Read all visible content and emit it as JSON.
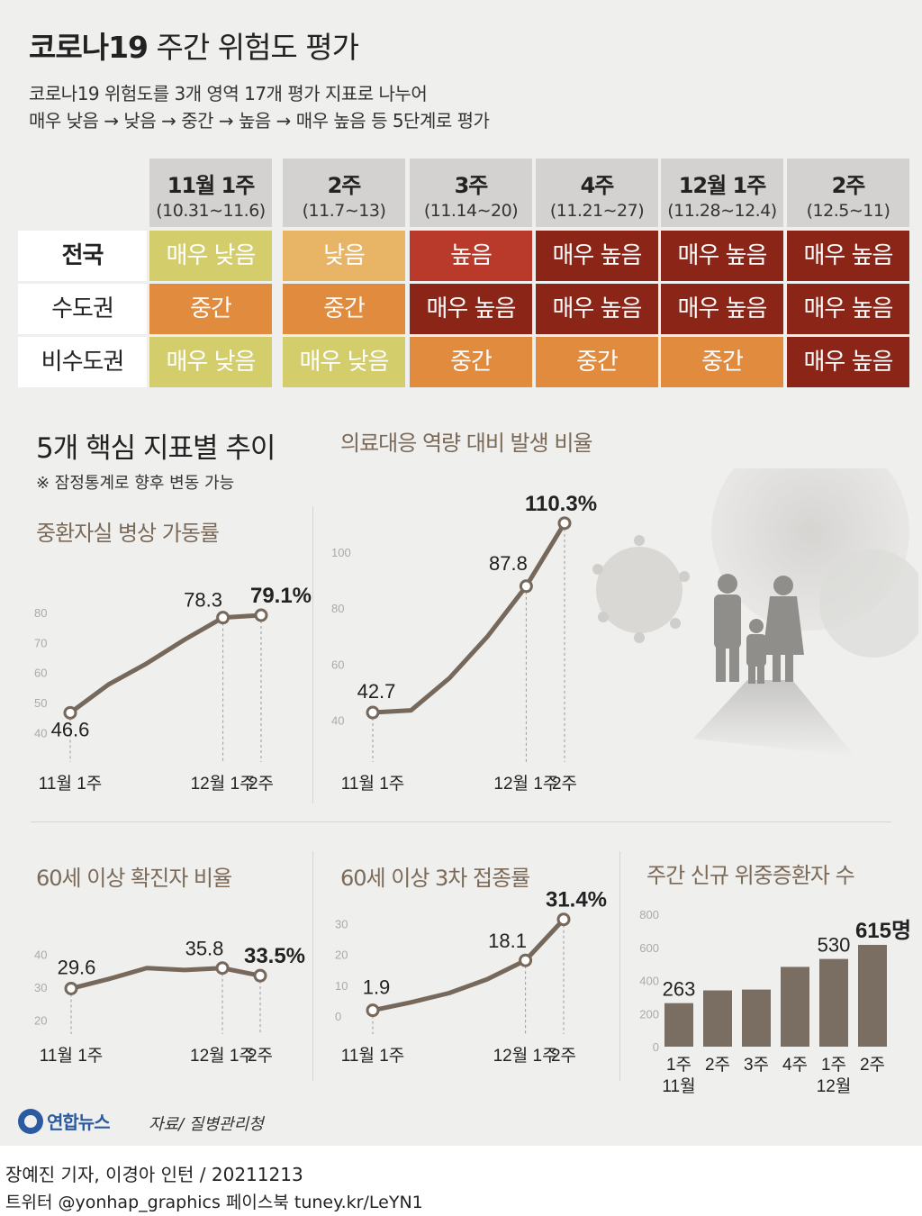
{
  "header": {
    "title_bold": "코로나19",
    "title_rest": " 주간 위험도 평가",
    "subtitle_1": "코로나19 위험도를 3개 영역 17개 평가 지표로 나누어",
    "subtitle_2": "매우 낮음 → 낮음 → 중간 → 높음 → 매우 높음 등 5단계로 평가"
  },
  "risk_table": {
    "columns": [
      {
        "week": "11월 1주",
        "dates": "(10.31∼11.6)"
      },
      {
        "week": "2주",
        "dates": "(11.7∼13)"
      },
      {
        "week": "3주",
        "dates": "(11.14∼20)"
      },
      {
        "week": "4주",
        "dates": "(11.21∼27)"
      },
      {
        "week": "12월 1주",
        "dates": "(11.28∼12.4)"
      },
      {
        "week": "2주",
        "dates": "(12.5∼11)"
      }
    ],
    "rows": [
      {
        "label": "전국",
        "cells": [
          "매우 낮음",
          "낮음",
          "높음",
          "매우 높음",
          "매우 높음",
          "매우 높음"
        ]
      },
      {
        "label": "수도권",
        "cells": [
          "중간",
          "중간",
          "매우 높음",
          "매우 높음",
          "매우 높음",
          "매우 높음"
        ]
      },
      {
        "label": "비수도권",
        "cells": [
          "매우 낮음",
          "매우 낮음",
          "중간",
          "중간",
          "중간",
          "매우 높음"
        ]
      }
    ],
    "level_colors": {
      "매우 낮음": "#d3cd6c",
      "낮음": "#e8b466",
      "중간": "#e08b3e",
      "높음": "#b93a2b",
      "매우 높음": "#8a2518"
    }
  },
  "section": {
    "title": "5개 핵심 지표별 추이",
    "note": "※ 잠정통계로 향후 변동 가능"
  },
  "colors": {
    "line": "#76685b",
    "bar": "#7a6e62",
    "accent_text": "#7c6a58"
  },
  "chart_data": [
    {
      "type": "line",
      "title": "중환자실 병상 가동률",
      "x": [
        1,
        2,
        3,
        4,
        5,
        6
      ],
      "values": [
        46.6,
        56,
        63,
        71,
        78.3,
        79.1
      ],
      "labeled_points": [
        {
          "index": 0,
          "label": "46.6"
        },
        {
          "index": 4,
          "label": "78.3"
        },
        {
          "index": 5,
          "label": "79.1%"
        }
      ],
      "x_tick_labels": [
        {
          "index": 0,
          "label": "11월 1주"
        },
        {
          "index": 4,
          "label": "12월 1주"
        },
        {
          "index": 5,
          "label": "2주"
        }
      ],
      "yticks": [
        40,
        50,
        60,
        70,
        80
      ],
      "ylim": [
        38,
        92
      ]
    },
    {
      "type": "line",
      "title": "의료대응 역량 대비 발생 비율",
      "x": [
        1,
        2,
        3,
        4,
        5,
        6
      ],
      "values": [
        42.7,
        43.5,
        55,
        70,
        87.8,
        110.3
      ],
      "labeled_points": [
        {
          "index": 0,
          "label": "42.7"
        },
        {
          "index": 4,
          "label": "87.8"
        },
        {
          "index": 5,
          "label": "110.3%"
        }
      ],
      "x_tick_labels": [
        {
          "index": 0,
          "label": "11월 1주"
        },
        {
          "index": 4,
          "label": "12월 1주"
        },
        {
          "index": 5,
          "label": "2주"
        }
      ],
      "yticks": [
        40,
        60,
        80,
        100
      ],
      "ylim": [
        35,
        117
      ]
    },
    {
      "type": "line",
      "title": "60세 이상 확진자 비율",
      "x": [
        1,
        2,
        3,
        4,
        5,
        6
      ],
      "values": [
        29.6,
        32.5,
        35.8,
        35.2,
        35.8,
        33.5
      ],
      "labeled_points": [
        {
          "index": 0,
          "label": "29.6"
        },
        {
          "index": 4,
          "label": "35.8"
        },
        {
          "index": 5,
          "label": "33.5%"
        }
      ],
      "x_tick_labels": [
        {
          "index": 0,
          "label": "11월 1주"
        },
        {
          "index": 4,
          "label": "12월 1주"
        },
        {
          "index": 5,
          "label": "2주"
        }
      ],
      "yticks": [
        20,
        30,
        40
      ],
      "ylim": [
        18,
        48
      ]
    },
    {
      "type": "line",
      "title": "60세 이상 3차 접종률",
      "x": [
        1,
        2,
        3,
        4,
        5,
        6
      ],
      "values": [
        1.9,
        4.5,
        7.5,
        12,
        18.1,
        31.4
      ],
      "labeled_points": [
        {
          "index": 0,
          "label": "1.9"
        },
        {
          "index": 4,
          "label": "18.1"
        },
        {
          "index": 5,
          "label": "31.4%"
        }
      ],
      "x_tick_labels": [
        {
          "index": 0,
          "label": "11월 1주"
        },
        {
          "index": 4,
          "label": "12월 1주"
        },
        {
          "index": 5,
          "label": "2주"
        }
      ],
      "yticks": [
        0,
        10,
        20,
        30
      ],
      "ylim": [
        -2,
        36
      ]
    },
    {
      "type": "bar",
      "title": "주간 신규 위중증환자 수",
      "categories": [
        "1주",
        "2주",
        "3주",
        "4주",
        "1주",
        "2주"
      ],
      "month_labels": [
        {
          "index": 0,
          "label": "11월"
        },
        {
          "index": 4,
          "label": "12월"
        }
      ],
      "values": [
        263,
        340,
        345,
        482,
        530,
        615
      ],
      "value_labels": [
        {
          "index": 0,
          "label": "263"
        },
        {
          "index": 4,
          "label": "530"
        },
        {
          "index": 5,
          "label": "615명"
        }
      ],
      "yticks": [
        0,
        200,
        400,
        600,
        800
      ],
      "ylim": [
        0,
        820
      ]
    }
  ],
  "footer": {
    "logo": "연합뉴스",
    "source": "자료/ 질병관리청",
    "credit_1": "장예진 기자, 이경아 인턴 / 20211213",
    "credit_2": "트위터 @yonhap_graphics  페이스북 tuney.kr/LeYN1"
  }
}
